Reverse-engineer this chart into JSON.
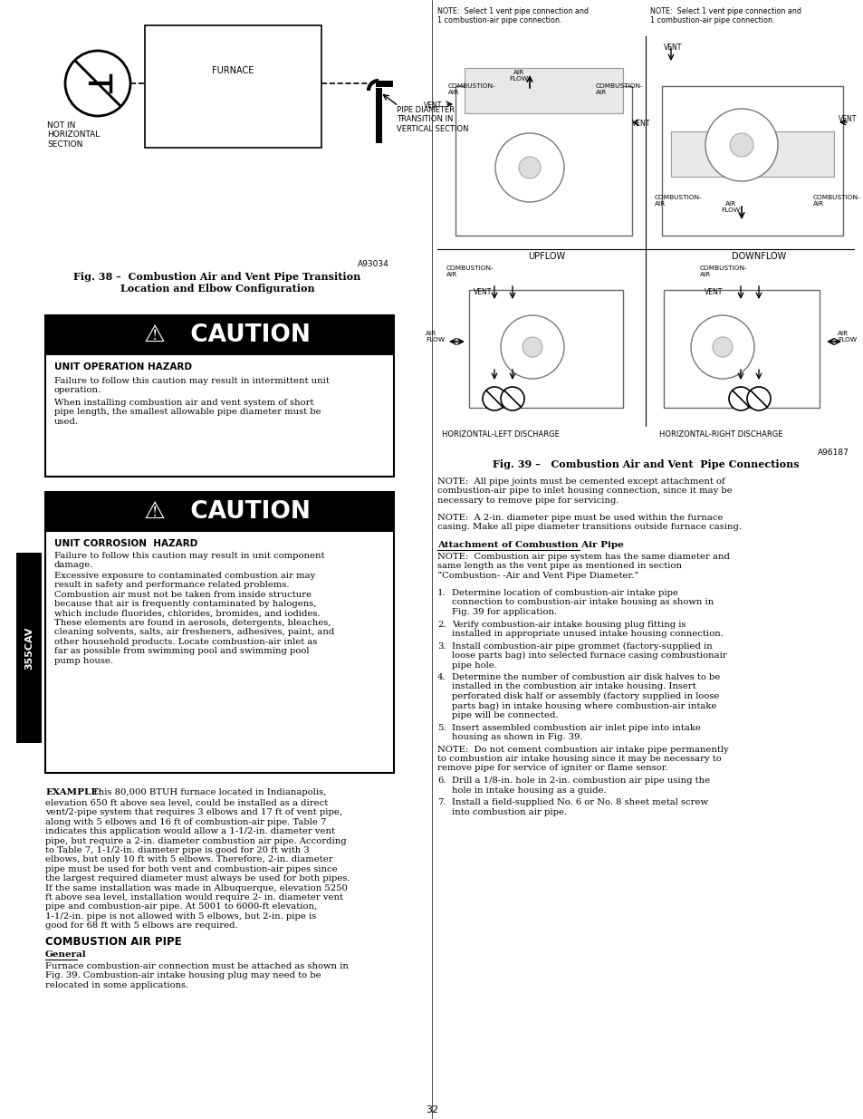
{
  "page_bg": "#ffffff",
  "page_num": "32",
  "left_tab_text": "355CAV",
  "fig38_title": "Fig. 38 –  Combustion Air and Vent Pipe Transition\nLocation and Elbow Configuration",
  "fig38_code": "A93034",
  "caution1_header": "  ⚠   CAUTION",
  "caution1_subheader": "UNIT OPERATION HAZARD",
  "caution1_text1": "Failure to follow this caution may result in intermittent unit\noperation.",
  "caution1_text2": "When installing combustion air and vent system of short\npipe length, the smallest allowable pipe diameter must be\nused.",
  "caution2_header": "  ⚠   CAUTION",
  "caution2_subheader": "UNIT CORROSION  HAZARD",
  "caution2_text1": "Failure to follow this caution may result in unit component\ndamage.",
  "caution2_text2": "Excessive exposure to contaminated combustion air may\nresult in safety and performance related problems.\nCombustion air must not be taken from inside structure\nbecause that air is frequently contaminated by halogens,\nwhich include fluorides, chlorides, bromides, and iodides.\nThese elements are found in aerosols, detergents, bleaches,\ncleaning solvents, salts, air fresheners, adhesives, paint, and\nother household products. Locate combustion-air inlet as\nfar as possible from swimming pool and swimming pool\npump house.",
  "combustion_header": "COMBUSTION AIR PIPE",
  "general_header": "General",
  "general_text": "Furnace combustion-air connection must be attached as shown in\nFig. 39. Combustion-air intake housing plug may need to be\nrelocated in some applications.",
  "fig39_title": "Fig. 39 –   Combustion Air and Vent  Pipe Connections",
  "fig39_code": "A96187",
  "right_note1": "NOTE:  All pipe joints must be cemented except attachment of\ncombustion-air pipe to inlet housing connection, since it may be\nnecessary to remove pipe for servicing.",
  "right_note2": "NOTE:  A 2-in. diameter pipe must be used within the furnace\ncasing. Make all pipe diameter transitions outside furnace casing.",
  "attachment_header": "Attachment of Combustion Air Pipe",
  "right_note3": "NOTE:  Combustion air pipe system has the same diameter and\nsame length as the vent pipe as mentioned in section\n“Combustion- -Air and Vent Pipe Diameter.”",
  "numbered_items": [
    "Determine location of combustion-air intake pipe\nconnection to combustion-air intake housing as shown in\nFig. 39 for application.",
    "Verify combustion-air intake housing plug fitting is\ninstalled in appropriate unused intake housing connection.",
    "Install combustion-air pipe grommet (factory-supplied in\nloose parts bag) into selected furnace casing combustionair\npipe hole.",
    "Determine the number of combustion air disk halves to be\ninstalled in the combustion air intake housing. Insert\nperforated disk half or assembly (factory supplied in loose\nparts bag) in intake housing where combustion-air intake\npipe will be connected.",
    "Insert assembled combustion air inlet pipe into intake\nhousing as shown in Fig. 39."
  ],
  "right_note_bottom": "NOTE:  Do not cement combustion air intake pipe permanently\nto combustion air intake housing since it may be necessary to\nremove pipe for service of igniter or flame sensor.",
  "numbered_items2": [
    "Drill a 1/8-in. hole in 2-in. combustion air pipe using the\nhole in intake housing as a guide.",
    "Install a field-supplied No. 6 or No. 8 sheet metal screw\ninto combustion air pipe."
  ],
  "example_bold": "EXAMPLE:",
  "example_body": " This 80,000 BTUH furnace located in Indianapolis,\nelevation 650 ft above sea level, could be installed as a direct\nvent/2-pipe system that requires 3 elbows and 17 ft of vent pipe,\nalong with 5 elbows and 16 ft of combustion-air pipe. Table 7\nindicates this application would allow a 1-1/2-in. diameter vent\npipe, but require a 2-in. diameter combustion air pipe. According\nto Table 7, 1-1/2-in. diameter pipe is good for 20 ft with 3\nelbows, but only 10 ft with 5 elbows. Therefore, 2-in. diameter\npipe must be used for both vent and combustion-air pipes since\nthe largest required diameter must always be used for both pipes.\nIf the same installation was made in Albuquerque, elevation 5250\nft above sea level, installation would require 2- in. diameter vent\npipe and combustion-air pipe. At 5001 to 6000-ft elevation,\n1-1/2-in. pipe is not allowed with 5 elbows, but 2-in. pipe is\ngood for 68 ft with 5 elbows are required."
}
